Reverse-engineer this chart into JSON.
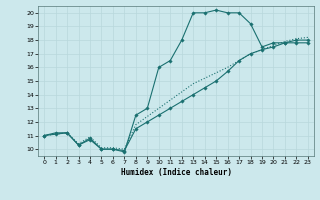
{
  "xlabel": "Humidex (Indice chaleur)",
  "xlim": [
    -0.5,
    23.5
  ],
  "ylim": [
    9.5,
    20.5
  ],
  "xticks": [
    0,
    1,
    2,
    3,
    4,
    5,
    6,
    7,
    8,
    9,
    10,
    11,
    12,
    13,
    14,
    15,
    16,
    17,
    18,
    19,
    20,
    21,
    22,
    23
  ],
  "yticks": [
    10,
    11,
    12,
    13,
    14,
    15,
    16,
    17,
    18,
    19,
    20
  ],
  "background_color": "#cce8ec",
  "grid_color": "#b8d8dc",
  "line_color": "#1a7070",
  "jagged_x": [
    0,
    1,
    2,
    3,
    4,
    5,
    6,
    7,
    8,
    9,
    10,
    11,
    12,
    13,
    14,
    15,
    16,
    17,
    18,
    19,
    20,
    21,
    22,
    23
  ],
  "jagged_y": [
    11,
    11.2,
    11.2,
    10.3,
    10.7,
    10.0,
    10.0,
    9.8,
    12.5,
    13.0,
    16.0,
    16.5,
    18.0,
    20.0,
    20.0,
    20.2,
    20.0,
    20.0,
    19.2,
    17.5,
    17.8,
    17.8,
    17.8,
    17.8
  ],
  "diag_mk_x": [
    0,
    1,
    2,
    3,
    4,
    5,
    6,
    7,
    8,
    9,
    10,
    11,
    12,
    13,
    14,
    15,
    16,
    17,
    18,
    19,
    20,
    21,
    22,
    23
  ],
  "diag_mk_y": [
    11,
    11.1,
    11.2,
    10.3,
    10.8,
    10.0,
    10.0,
    9.9,
    11.5,
    12.0,
    12.5,
    13.0,
    13.5,
    14.0,
    14.5,
    15.0,
    15.7,
    16.5,
    17.0,
    17.3,
    17.5,
    17.8,
    18.0,
    18.0
  ],
  "diag_dot_x": [
    0,
    1,
    2,
    3,
    4,
    5,
    6,
    7,
    8,
    9,
    10,
    11,
    12,
    13,
    14,
    15,
    16,
    17,
    18,
    19,
    20,
    21,
    22,
    23
  ],
  "diag_dot_y": [
    11,
    11.1,
    11.2,
    10.4,
    10.9,
    10.1,
    10.1,
    10.0,
    11.8,
    12.4,
    13.0,
    13.6,
    14.2,
    14.8,
    15.2,
    15.6,
    16.0,
    16.5,
    17.0,
    17.3,
    17.6,
    17.9,
    18.1,
    18.2
  ]
}
